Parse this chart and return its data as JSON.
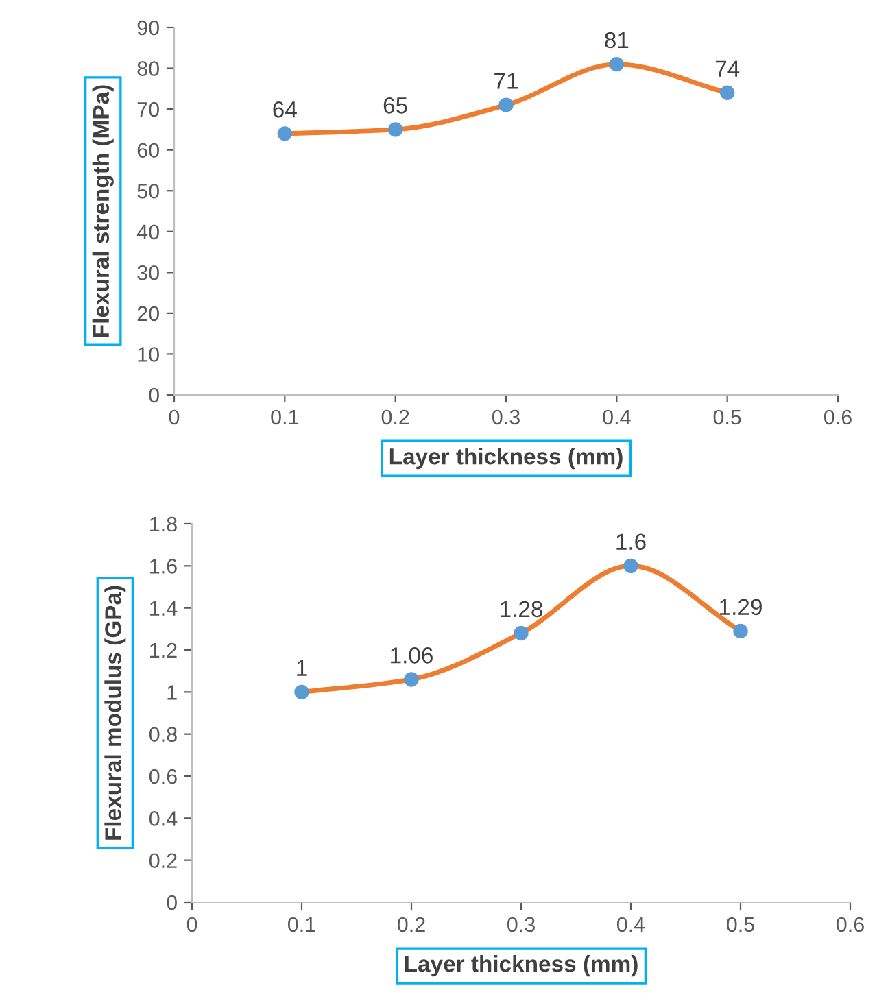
{
  "chart_data": [
    {
      "type": "line",
      "xlabel": "Layer thickness (mm)",
      "ylabel": "Flexural strength (MPa)",
      "x": [
        0.1,
        0.2,
        0.3,
        0.4,
        0.5
      ],
      "series": [
        {
          "color": "#ed7d31",
          "colors": [
            "#5b9bd5",
            "#5b9bd5",
            "#5b9bd5",
            "#5b9bd5",
            "#5b9bd5"
          ],
          "values": [
            64,
            65,
            71,
            81,
            74
          ]
        }
      ],
      "marker": "circle",
      "data_labels": true,
      "grid": false,
      "xlim": [
        0,
        0.6
      ],
      "xticks": [
        0,
        0.1,
        0.2,
        0.3,
        0.4,
        0.5,
        0.6
      ],
      "ylim": [
        0,
        90
      ],
      "yticks": [
        0,
        10,
        20,
        30,
        40,
        50,
        60,
        70,
        80,
        90
      ]
    },
    {
      "type": "line",
      "xlabel": "Layer thickness (mm)",
      "ylabel": "Flexural modulus (GPa)",
      "x": [
        0.1,
        0.2,
        0.3,
        0.4,
        0.5
      ],
      "series": [
        {
          "color": "#ed7d31",
          "colors": [
            "#5b9bd5",
            "#5b9bd5",
            "#5b9bd5",
            "#5b9bd5",
            "#5b9bd5"
          ],
          "values": [
            1,
            1.06,
            1.28,
            1.6,
            1.29
          ]
        }
      ],
      "marker": "circle",
      "data_labels": true,
      "grid": false,
      "xlim": [
        0,
        0.6
      ],
      "xticks": [
        0,
        0.1,
        0.2,
        0.3,
        0.4,
        0.5,
        0.6
      ],
      "ylim": [
        0,
        1.8
      ],
      "yticks": [
        0,
        0.2,
        0.4,
        0.6,
        0.8,
        1,
        1.2,
        1.4,
        1.6,
        1.8
      ]
    }
  ]
}
